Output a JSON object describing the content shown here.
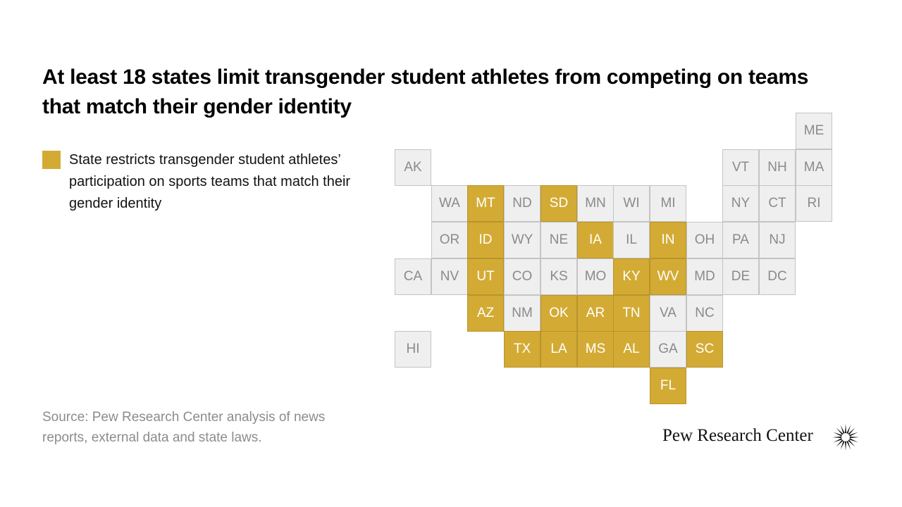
{
  "title": "At least 18 states limit transgender student athletes from competing on teams that match their gender identity",
  "legend": {
    "label": "State restricts transgender student athletes’ participation on sports teams that match their gender identity",
    "color": "#d3ab34"
  },
  "colors": {
    "restrict": "#d3ab34",
    "other": "#efefef"
  },
  "states": [
    {
      "abbr": "ME",
      "row": 0,
      "col": 11,
      "restricts": false
    },
    {
      "abbr": "AK",
      "row": 1,
      "col": 0,
      "restricts": false
    },
    {
      "abbr": "VT",
      "row": 1,
      "col": 9,
      "restricts": false
    },
    {
      "abbr": "NH",
      "row": 1,
      "col": 10,
      "restricts": false
    },
    {
      "abbr": "MA",
      "row": 1,
      "col": 11,
      "restricts": false
    },
    {
      "abbr": "WA",
      "row": 2,
      "col": 1,
      "restricts": false
    },
    {
      "abbr": "MT",
      "row": 2,
      "col": 2,
      "restricts": true
    },
    {
      "abbr": "ND",
      "row": 2,
      "col": 3,
      "restricts": false
    },
    {
      "abbr": "SD",
      "row": 2,
      "col": 4,
      "restricts": true
    },
    {
      "abbr": "MN",
      "row": 2,
      "col": 5,
      "restricts": false
    },
    {
      "abbr": "WI",
      "row": 2,
      "col": 6,
      "restricts": false
    },
    {
      "abbr": "MI",
      "row": 2,
      "col": 7,
      "restricts": false
    },
    {
      "abbr": "NY",
      "row": 2,
      "col": 9,
      "restricts": false
    },
    {
      "abbr": "CT",
      "row": 2,
      "col": 10,
      "restricts": false
    },
    {
      "abbr": "RI",
      "row": 2,
      "col": 11,
      "restricts": false
    },
    {
      "abbr": "OR",
      "row": 3,
      "col": 1,
      "restricts": false
    },
    {
      "abbr": "ID",
      "row": 3,
      "col": 2,
      "restricts": true
    },
    {
      "abbr": "WY",
      "row": 3,
      "col": 3,
      "restricts": false
    },
    {
      "abbr": "NE",
      "row": 3,
      "col": 4,
      "restricts": false
    },
    {
      "abbr": "IA",
      "row": 3,
      "col": 5,
      "restricts": true
    },
    {
      "abbr": "IL",
      "row": 3,
      "col": 6,
      "restricts": false
    },
    {
      "abbr": "IN",
      "row": 3,
      "col": 7,
      "restricts": true
    },
    {
      "abbr": "OH",
      "row": 3,
      "col": 8,
      "restricts": false
    },
    {
      "abbr": "PA",
      "row": 3,
      "col": 9,
      "restricts": false
    },
    {
      "abbr": "NJ",
      "row": 3,
      "col": 10,
      "restricts": false
    },
    {
      "abbr": "CA",
      "row": 4,
      "col": 0,
      "restricts": false
    },
    {
      "abbr": "NV",
      "row": 4,
      "col": 1,
      "restricts": false
    },
    {
      "abbr": "UT",
      "row": 4,
      "col": 2,
      "restricts": true
    },
    {
      "abbr": "CO",
      "row": 4,
      "col": 3,
      "restricts": false
    },
    {
      "abbr": "KS",
      "row": 4,
      "col": 4,
      "restricts": false
    },
    {
      "abbr": "MO",
      "row": 4,
      "col": 5,
      "restricts": false
    },
    {
      "abbr": "KY",
      "row": 4,
      "col": 6,
      "restricts": true
    },
    {
      "abbr": "WV",
      "row": 4,
      "col": 7,
      "restricts": true
    },
    {
      "abbr": "MD",
      "row": 4,
      "col": 8,
      "restricts": false
    },
    {
      "abbr": "DE",
      "row": 4,
      "col": 9,
      "restricts": false
    },
    {
      "abbr": "DC",
      "row": 4,
      "col": 10,
      "restricts": false
    },
    {
      "abbr": "AZ",
      "row": 5,
      "col": 2,
      "restricts": true
    },
    {
      "abbr": "NM",
      "row": 5,
      "col": 3,
      "restricts": false
    },
    {
      "abbr": "OK",
      "row": 5,
      "col": 4,
      "restricts": true
    },
    {
      "abbr": "AR",
      "row": 5,
      "col": 5,
      "restricts": true
    },
    {
      "abbr": "TN",
      "row": 5,
      "col": 6,
      "restricts": true
    },
    {
      "abbr": "VA",
      "row": 5,
      "col": 7,
      "restricts": false
    },
    {
      "abbr": "NC",
      "row": 5,
      "col": 8,
      "restricts": false
    },
    {
      "abbr": "HI",
      "row": 6,
      "col": 0,
      "restricts": false
    },
    {
      "abbr": "TX",
      "row": 6,
      "col": 3,
      "restricts": true
    },
    {
      "abbr": "LA",
      "row": 6,
      "col": 4,
      "restricts": true
    },
    {
      "abbr": "MS",
      "row": 6,
      "col": 5,
      "restricts": true
    },
    {
      "abbr": "AL",
      "row": 6,
      "col": 6,
      "restricts": true
    },
    {
      "abbr": "GA",
      "row": 6,
      "col": 7,
      "restricts": false
    },
    {
      "abbr": "SC",
      "row": 6,
      "col": 8,
      "restricts": true
    },
    {
      "abbr": "FL",
      "row": 7,
      "col": 7,
      "restricts": true
    }
  ],
  "source": "Source: Pew Research Center analysis of news reports, external data and state laws.",
  "logo": {
    "text": "Pew Research Center",
    "icon": "pew-sunburst-icon"
  }
}
